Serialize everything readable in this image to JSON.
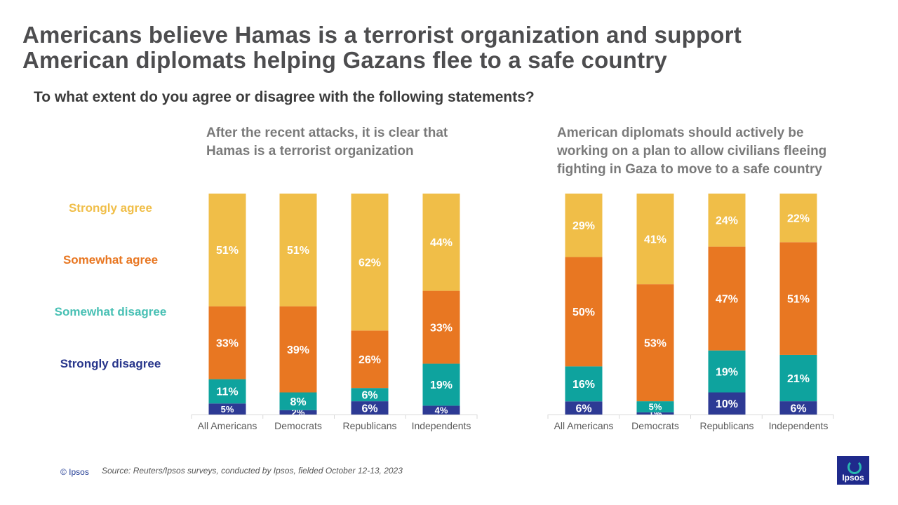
{
  "title": {
    "line1": "Americans believe Hamas is a terrorist organization and support",
    "line2": "American diplomats helping Gazans flee to a safe country"
  },
  "question": "To what extent do you agree or disagree with the following statements?",
  "legend": [
    {
      "label": "Strongly agree",
      "color": "#f0be48"
    },
    {
      "label": "Somewhat agree",
      "color": "#e87722"
    },
    {
      "label": "Somewhat disagree",
      "color": "#48c0b4"
    },
    {
      "label": "Strongly disagree",
      "color": "#27358b"
    }
  ],
  "charts": [
    {
      "heading_lines": [
        "After the recent attacks, it is clear that",
        "Hamas is a terrorist organization"
      ]
    },
    {
      "heading_lines": [
        "American diplomats should actively be",
        "working on a plan to allow civilians fleeing",
        "fighting in Gaza to move to a safe country"
      ]
    }
  ],
  "footer": {
    "copyright": "© Ipsos",
    "source": "Source: Reuters/Ipsos surveys, conducted by Ipsos, fielded October 12-13, 2023"
  },
  "logo_text": "Ipsos",
  "colors": {
    "strongly_agree": "#f0be48",
    "somewhat_agree": "#e87722",
    "somewhat_disagree": "#0ea39e",
    "strongly_disagree": "#2d3a94",
    "label_text": "#ffffff",
    "axis": "#d9d9d9",
    "tick_text": "#595959"
  },
  "chart_data": [
    {
      "type": "bar",
      "stacked": true,
      "title": "After the recent attacks, it is clear that Hamas is a terrorist organization",
      "categories": [
        "All Americans",
        "Democrats",
        "Republicans",
        "Independents"
      ],
      "series": [
        {
          "name": "Strongly disagree",
          "values": [
            5,
            2,
            6,
            4
          ],
          "labels": [
            "5%",
            "2%",
            "6%",
            "4%"
          ]
        },
        {
          "name": "Somewhat disagree",
          "values": [
            11,
            8,
            6,
            19
          ],
          "labels": [
            "11%",
            "8%",
            "6%",
            "19%"
          ]
        },
        {
          "name": "Somewhat agree",
          "values": [
            33,
            39,
            26,
            33
          ],
          "labels": [
            "33%",
            "39%",
            "26%",
            "33%"
          ]
        },
        {
          "name": "Strongly agree",
          "values": [
            51,
            51,
            62,
            44
          ],
          "labels": [
            "51%",
            "51%",
            "62%",
            "44%"
          ]
        }
      ],
      "ylim": [
        0,
        100
      ]
    },
    {
      "type": "bar",
      "stacked": true,
      "title": "American diplomats should actively be working on a plan to allow civilians fleeing fighting in Gaza to move to a safe country",
      "categories": [
        "All Americans",
        "Democrats",
        "Republicans",
        "Independents"
      ],
      "series": [
        {
          "name": "Strongly disagree",
          "values": [
            6,
            1,
            10,
            6
          ],
          "labels": [
            "6%",
            "1%",
            "10%",
            "6%"
          ]
        },
        {
          "name": "Somewhat disagree",
          "values": [
            16,
            5,
            19,
            21
          ],
          "labels": [
            "16%",
            "5%",
            "19%",
            "21%"
          ]
        },
        {
          "name": "Somewhat agree",
          "values": [
            50,
            53,
            47,
            51
          ],
          "labels": [
            "50%",
            "53%",
            "47%",
            "51%"
          ]
        },
        {
          "name": "Strongly agree",
          "values": [
            29,
            41,
            24,
            22
          ],
          "labels": [
            "29%",
            "41%",
            "24%",
            "22%"
          ]
        }
      ],
      "ylim": [
        0,
        100
      ]
    }
  ]
}
